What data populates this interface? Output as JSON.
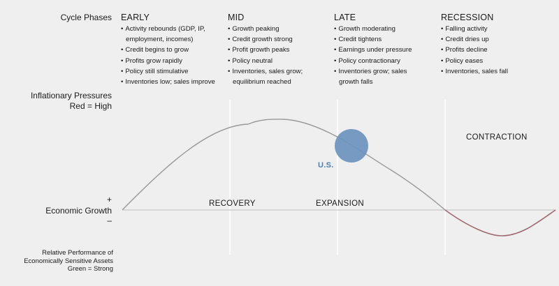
{
  "labels": {
    "cycle_phases": "Cycle Phases",
    "inflation_line1": "Inflationary Pressures",
    "inflation_line2": "Red = High",
    "plus": "+",
    "economic_growth": "Economic Growth",
    "minus": "–",
    "relative_line1": "Relative Performance of",
    "relative_line2": "Economically Sensitive Assets",
    "relative_line3": "Green = Strong"
  },
  "phases": [
    {
      "title": "EARLY",
      "bullets": [
        "Activity rebounds (GDP, IP,",
        "employment, incomes)",
        "Credit begins to grow",
        "Profits grow rapidly",
        "Policy still stimulative",
        "Inventories low; sales improve"
      ]
    },
    {
      "title": "MID",
      "bullets": [
        "Growth peaking",
        "Credit growth strong",
        "Profit growth peaks",
        "Policy neutral",
        "Inventories, sales grow;",
        "equilibrium reached"
      ]
    },
    {
      "title": "LATE",
      "bullets": [
        "Growth moderating",
        "Credit tightens",
        "Earnings under pressure",
        "Policy contractionary",
        "Inventories grow; sales",
        "growth falls"
      ]
    },
    {
      "title": "RECESSION",
      "bullets": [
        "Falling activity",
        "Credit dries up",
        "Profits decline",
        "Policy eases",
        "Inventories, sales fall"
      ]
    }
  ],
  "stages": {
    "recovery": "RECOVERY",
    "expansion": "EXPANSION",
    "contraction": "CONTRACTION"
  },
  "marker": {
    "label": "U.S.",
    "color": "#6b93bd"
  },
  "colors": {
    "curve_growth": "#999999",
    "curve_contraction": "#a06a72",
    "axis": "#c8c8c8",
    "divider": "#ffffff",
    "marker_label": "#4f7fa9"
  }
}
